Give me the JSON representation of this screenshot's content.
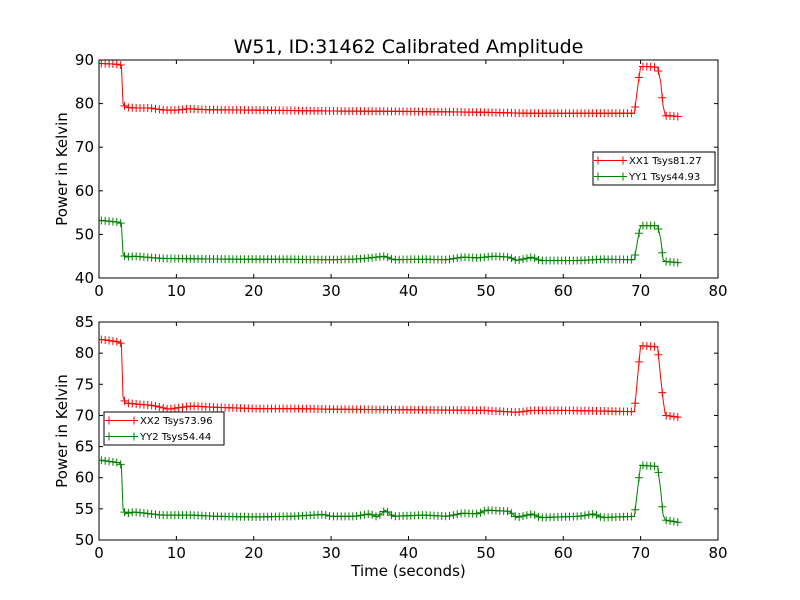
{
  "chart_data": [
    {
      "type": "line",
      "title": "W51, ID:31462 Calibrated Amplitude",
      "xlabel": "",
      "ylabel": "Power in Kelvin",
      "xlim": [
        0,
        80
      ],
      "ylim": [
        40,
        90
      ],
      "xticks": [
        "0",
        "10",
        "20",
        "30",
        "40",
        "50",
        "60",
        "70",
        "80"
      ],
      "yticks": [
        "40",
        "50",
        "60",
        "70",
        "80",
        "90"
      ],
      "legend_position": "center-right",
      "series": [
        {
          "name": "XX1 Tsys81.27",
          "color": "#ff0000",
          "points": [
            [
              0.3,
              89.2
            ],
            [
              2.6,
              89.0
            ],
            [
              2.9,
              88.8
            ],
            [
              3.1,
              80.0
            ],
            [
              3.4,
              79.2
            ],
            [
              4.5,
              79.0
            ],
            [
              6.5,
              79.0
            ],
            [
              8.5,
              78.5
            ],
            [
              10,
              78.5
            ],
            [
              11.5,
              78.8
            ],
            [
              14,
              78.6
            ],
            [
              20,
              78.5
            ],
            [
              30,
              78.3
            ],
            [
              40,
              78.2
            ],
            [
              50,
              78.0
            ],
            [
              55,
              77.8
            ],
            [
              60,
              77.8
            ],
            [
              69.2,
              77.8
            ],
            [
              69.6,
              83.5
            ],
            [
              70.0,
              88.5
            ],
            [
              71,
              88.5
            ],
            [
              72.2,
              88.3
            ],
            [
              72.6,
              85.0
            ],
            [
              72.9,
              79.5
            ],
            [
              73.2,
              77.2
            ],
            [
              74,
              77.2
            ],
            [
              75,
              77.0
            ]
          ]
        },
        {
          "name": "YY1 Tsys44.93",
          "color": "#008000",
          "points": [
            [
              0.3,
              53.2
            ],
            [
              2.6,
              52.8
            ],
            [
              2.9,
              52.5
            ],
            [
              3.1,
              45.5
            ],
            [
              3.4,
              44.8
            ],
            [
              4.5,
              45.0
            ],
            [
              6,
              44.8
            ],
            [
              8,
              44.5
            ],
            [
              12,
              44.4
            ],
            [
              18,
              44.3
            ],
            [
              24,
              44.3
            ],
            [
              30,
              44.2
            ],
            [
              33,
              44.3
            ],
            [
              35,
              44.6
            ],
            [
              37,
              45.0
            ],
            [
              38,
              44.2
            ],
            [
              42,
              44.3
            ],
            [
              45,
              44.2
            ],
            [
              47,
              44.8
            ],
            [
              49,
              44.6
            ],
            [
              51,
              45.0
            ],
            [
              53,
              44.8
            ],
            [
              54,
              44.0
            ],
            [
              56,
              44.8
            ],
            [
              57,
              44.0
            ],
            [
              62,
              44.0
            ],
            [
              65,
              44.3
            ],
            [
              69.2,
              44.2
            ],
            [
              69.6,
              48.5
            ],
            [
              70.0,
              52.0
            ],
            [
              72.2,
              52.0
            ],
            [
              72.6,
              49.0
            ],
            [
              72.9,
              44.2
            ],
            [
              73.2,
              43.8
            ],
            [
              75,
              43.5
            ]
          ]
        }
      ]
    },
    {
      "type": "line",
      "title": "",
      "xlabel": "Time (seconds)",
      "ylabel": "Power in Kelvin",
      "xlim": [
        0,
        80
      ],
      "ylim": [
        50,
        85
      ],
      "xticks": [
        "0",
        "10",
        "20",
        "30",
        "40",
        "50",
        "60",
        "70",
        "80"
      ],
      "yticks": [
        "50",
        "55",
        "60",
        "65",
        "70",
        "75",
        "80",
        "85"
      ],
      "legend_position": "center-left",
      "series": [
        {
          "name": "XX2 Tsys73.96",
          "color": "#ff0000",
          "points": [
            [
              0.3,
              82.2
            ],
            [
              2.6,
              81.8
            ],
            [
              2.9,
              81.5
            ],
            [
              3.1,
              73.0
            ],
            [
              3.4,
              72.0
            ],
            [
              5,
              71.8
            ],
            [
              7,
              71.6
            ],
            [
              9,
              71.0
            ],
            [
              10,
              71.2
            ],
            [
              12,
              71.5
            ],
            [
              15,
              71.3
            ],
            [
              20,
              71.1
            ],
            [
              25,
              71.1
            ],
            [
              30,
              71.0
            ],
            [
              40,
              70.9
            ],
            [
              50,
              70.8
            ],
            [
              54,
              70.5
            ],
            [
              56,
              70.8
            ],
            [
              60,
              70.8
            ],
            [
              65,
              70.7
            ],
            [
              69.2,
              70.6
            ],
            [
              69.6,
              76.0
            ],
            [
              70.0,
              81.2
            ],
            [
              72.2,
              81.0
            ],
            [
              72.6,
              76.0
            ],
            [
              72.9,
              72.5
            ],
            [
              73.2,
              70.0
            ],
            [
              75,
              69.7
            ]
          ]
        },
        {
          "name": "YY2 Tsys54.44",
          "color": "#008000",
          "points": [
            [
              0.3,
              62.8
            ],
            [
              2.6,
              62.4
            ],
            [
              2.9,
              62.0
            ],
            [
              3.1,
              55.0
            ],
            [
              3.4,
              54.2
            ],
            [
              4.5,
              54.5
            ],
            [
              6,
              54.3
            ],
            [
              8,
              54.0
            ],
            [
              12,
              54.0
            ],
            [
              15,
              53.8
            ],
            [
              20,
              53.7
            ],
            [
              25,
              53.8
            ],
            [
              29,
              54.1
            ],
            [
              30,
              53.8
            ],
            [
              33,
              53.8
            ],
            [
              35,
              54.2
            ],
            [
              36,
              53.7
            ],
            [
              37,
              54.8
            ],
            [
              38,
              53.8
            ],
            [
              42,
              54.0
            ],
            [
              45,
              53.8
            ],
            [
              47,
              54.3
            ],
            [
              49,
              54.2
            ],
            [
              50,
              54.8
            ],
            [
              53,
              54.6
            ],
            [
              54,
              53.6
            ],
            [
              56,
              54.2
            ],
            [
              57,
              53.6
            ],
            [
              62,
              53.8
            ],
            [
              64,
              54.2
            ],
            [
              65,
              53.6
            ],
            [
              69.2,
              53.8
            ],
            [
              69.6,
              58.0
            ],
            [
              70.0,
              62.0
            ],
            [
              72.2,
              61.8
            ],
            [
              72.6,
              58.0
            ],
            [
              72.9,
              54.0
            ],
            [
              73.2,
              53.2
            ],
            [
              75,
              52.8
            ]
          ]
        }
      ]
    }
  ]
}
